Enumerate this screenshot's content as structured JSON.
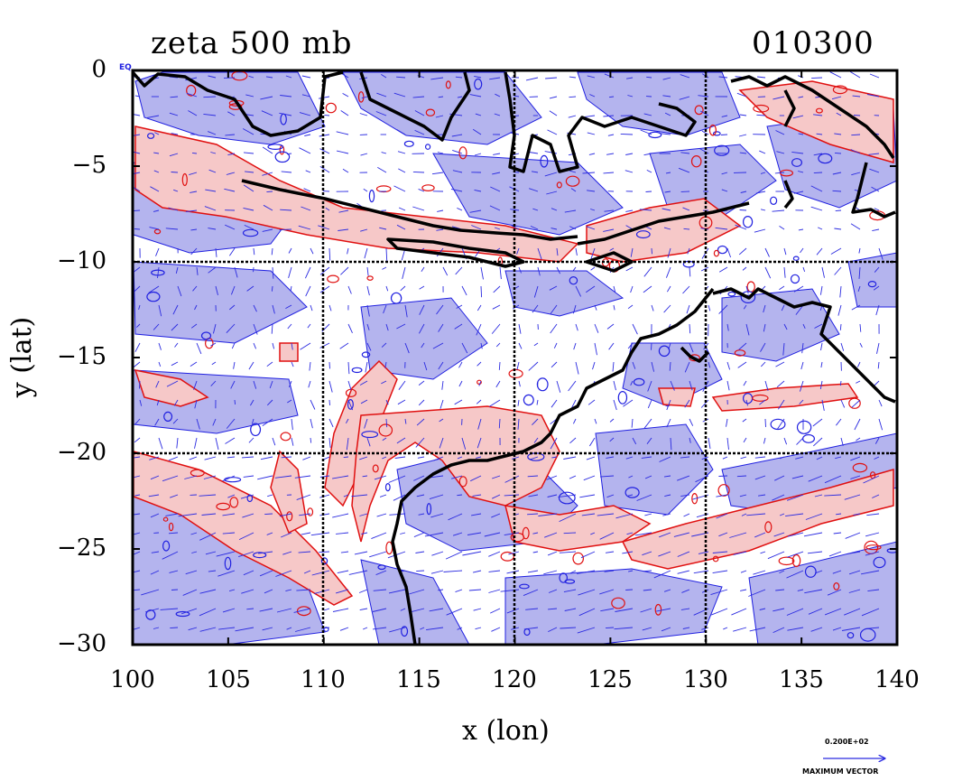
{
  "title_left": "zeta 500 mb",
  "title_right": "010300",
  "xlabel": "x (lon)",
  "ylabel": "y (lat)",
  "x_ticks": [
    "100",
    "105",
    "110",
    "115",
    "120",
    "125",
    "130",
    "135",
    "140"
  ],
  "y_ticks": [
    "0",
    "−5",
    "−10",
    "−15",
    "−20",
    "−25",
    "−30"
  ],
  "corner_label": "EQ",
  "legend": {
    "vector_value": "0.200E+02",
    "vector_caption": "MAXIMUM VECTOR"
  },
  "map": {
    "lon_range": [
      100,
      140
    ],
    "lat_range": [
      -30,
      0
    ],
    "grid_lons": [
      110,
      120,
      130
    ],
    "grid_lats": [
      -10,
      -20
    ],
    "colors": {
      "positive_fill": "#f6c8c8",
      "positive_contour": "#e01010",
      "negative_fill": "#b4b4ee",
      "negative_contour": "#2020e0",
      "coastline": "#000000",
      "vectors": "#2a2ae0"
    }
  }
}
